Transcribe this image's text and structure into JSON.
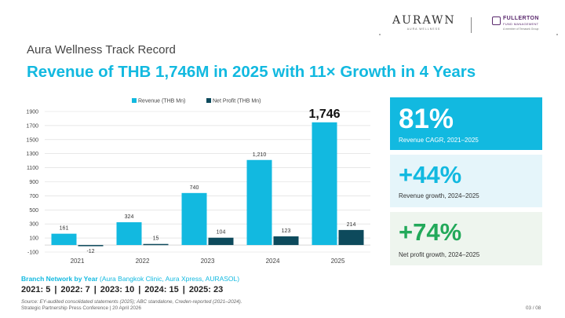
{
  "logos": {
    "aurawn_word": "AURAWN",
    "aurawn_sub": "AURA WELLNESS",
    "fullerton_name": "FULLERTON",
    "fullerton_sub": "FUND MANAGEMENT",
    "fullerton_tagline": "A member of Temasek Group"
  },
  "header": {
    "kicker": "Aura Wellness Track Record",
    "headline": "Revenue of THB 1,746M in 2025 with 11× Growth in 4 Years"
  },
  "chart_data": {
    "type": "bar",
    "categories": [
      "2021",
      "2022",
      "2023",
      "2024",
      "2025"
    ],
    "series": [
      {
        "name": "Revenue (THB Mn)",
        "values": [
          161,
          324,
          740,
          1210,
          1746
        ],
        "labels": [
          "161",
          "324",
          "740",
          "1,210",
          "1,746"
        ],
        "color": "#12b9e0"
      },
      {
        "name": "Net Profit (THB Mn)",
        "values": [
          -12,
          15,
          104,
          123,
          214
        ],
        "labels": [
          "-12",
          "15",
          "104",
          "123",
          "214"
        ],
        "color": "#0d4a5c"
      }
    ],
    "ylim": [
      -100,
      1900
    ],
    "yticks": [
      "-100",
      "100",
      "300",
      "500",
      "700",
      "900",
      "1100",
      "1300",
      "1500",
      "1700",
      "1900"
    ],
    "grid": true,
    "legend": "top",
    "highlight_label": "1,746"
  },
  "cards": [
    {
      "value": "81%",
      "caption": "Revenue CAGR, 2021–2025"
    },
    {
      "value": "+44%",
      "caption": "Revenue growth, 2024–2025"
    },
    {
      "value": "+74%",
      "caption": "Net profit growth, 2024–2025"
    }
  ],
  "branches": {
    "title_bold": "Branch Network by Year",
    "title_rest": " (Aura Bangkok Clinic, Aura Xpress, AURASOL)",
    "items": [
      "2021: 5",
      "2022: 7",
      "2023: 10",
      "2024: 15",
      "2025: 23"
    ]
  },
  "footer": {
    "source": "Source: EY-audited consolidated statements (2025); ABC standalone, Creden-reported (2021–2024).",
    "conference": "Strategic Partnership Press Conference  |  20 April 2026",
    "page": "03 / 08"
  }
}
